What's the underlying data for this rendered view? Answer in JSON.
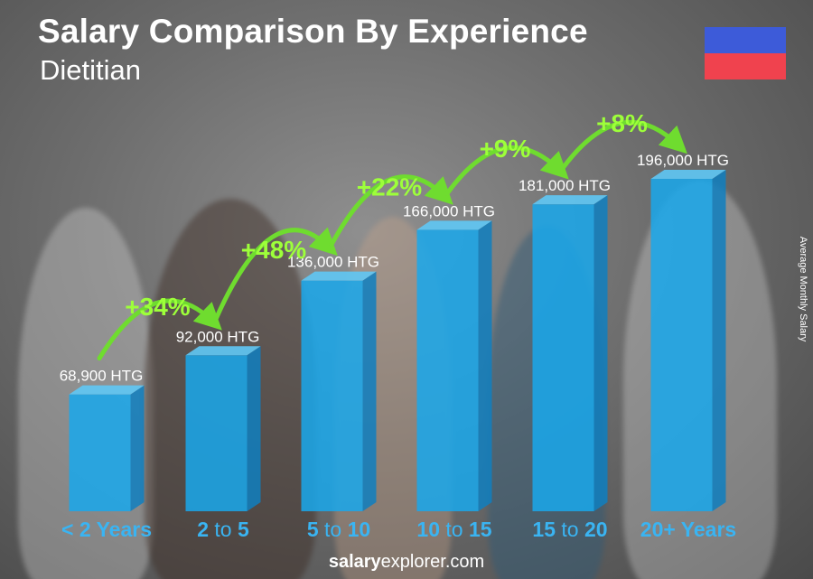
{
  "title": "Salary Comparison By Experience",
  "subtitle": "Dietitian",
  "side_label": "Average Monthly Salary",
  "footer": {
    "bold": "salary",
    "rest": "explorer.com"
  },
  "colors": {
    "bar": "#19a8ec",
    "arrow": "#6fdc2f",
    "pct": "#9dff3a",
    "category": "#3ab4f2",
    "flag_top": "#3d5bd9",
    "flag_bottom": "#f0424e"
  },
  "chart_data": {
    "type": "bar",
    "categories": [
      {
        "parts": [
          {
            "text": "< 2 Years",
            "light": false
          }
        ]
      },
      {
        "parts": [
          {
            "text": "2",
            "light": false
          },
          {
            "text": " to ",
            "light": true
          },
          {
            "text": "5",
            "light": false
          }
        ]
      },
      {
        "parts": [
          {
            "text": "5",
            "light": false
          },
          {
            "text": " to ",
            "light": true
          },
          {
            "text": "10",
            "light": false
          }
        ]
      },
      {
        "parts": [
          {
            "text": "10",
            "light": false
          },
          {
            "text": " to ",
            "light": true
          },
          {
            "text": "15",
            "light": false
          }
        ]
      },
      {
        "parts": [
          {
            "text": "15",
            "light": false
          },
          {
            "text": " to ",
            "light": true
          },
          {
            "text": "20",
            "light": false
          }
        ]
      },
      {
        "parts": [
          {
            "text": "20+ Years",
            "light": false
          }
        ]
      }
    ],
    "values": [
      68900,
      92000,
      136000,
      166000,
      181000,
      196000
    ],
    "value_labels": [
      "68,900 HTG",
      "92,000 HTG",
      "136,000 HTG",
      "166,000 HTG",
      "181,000 HTG",
      "196,000 HTG"
    ],
    "increases": [
      "+34%",
      "+48%",
      "+22%",
      "+9%",
      "+8%"
    ],
    "ylabel": "Average Monthly Salary",
    "unit": "HTG"
  }
}
